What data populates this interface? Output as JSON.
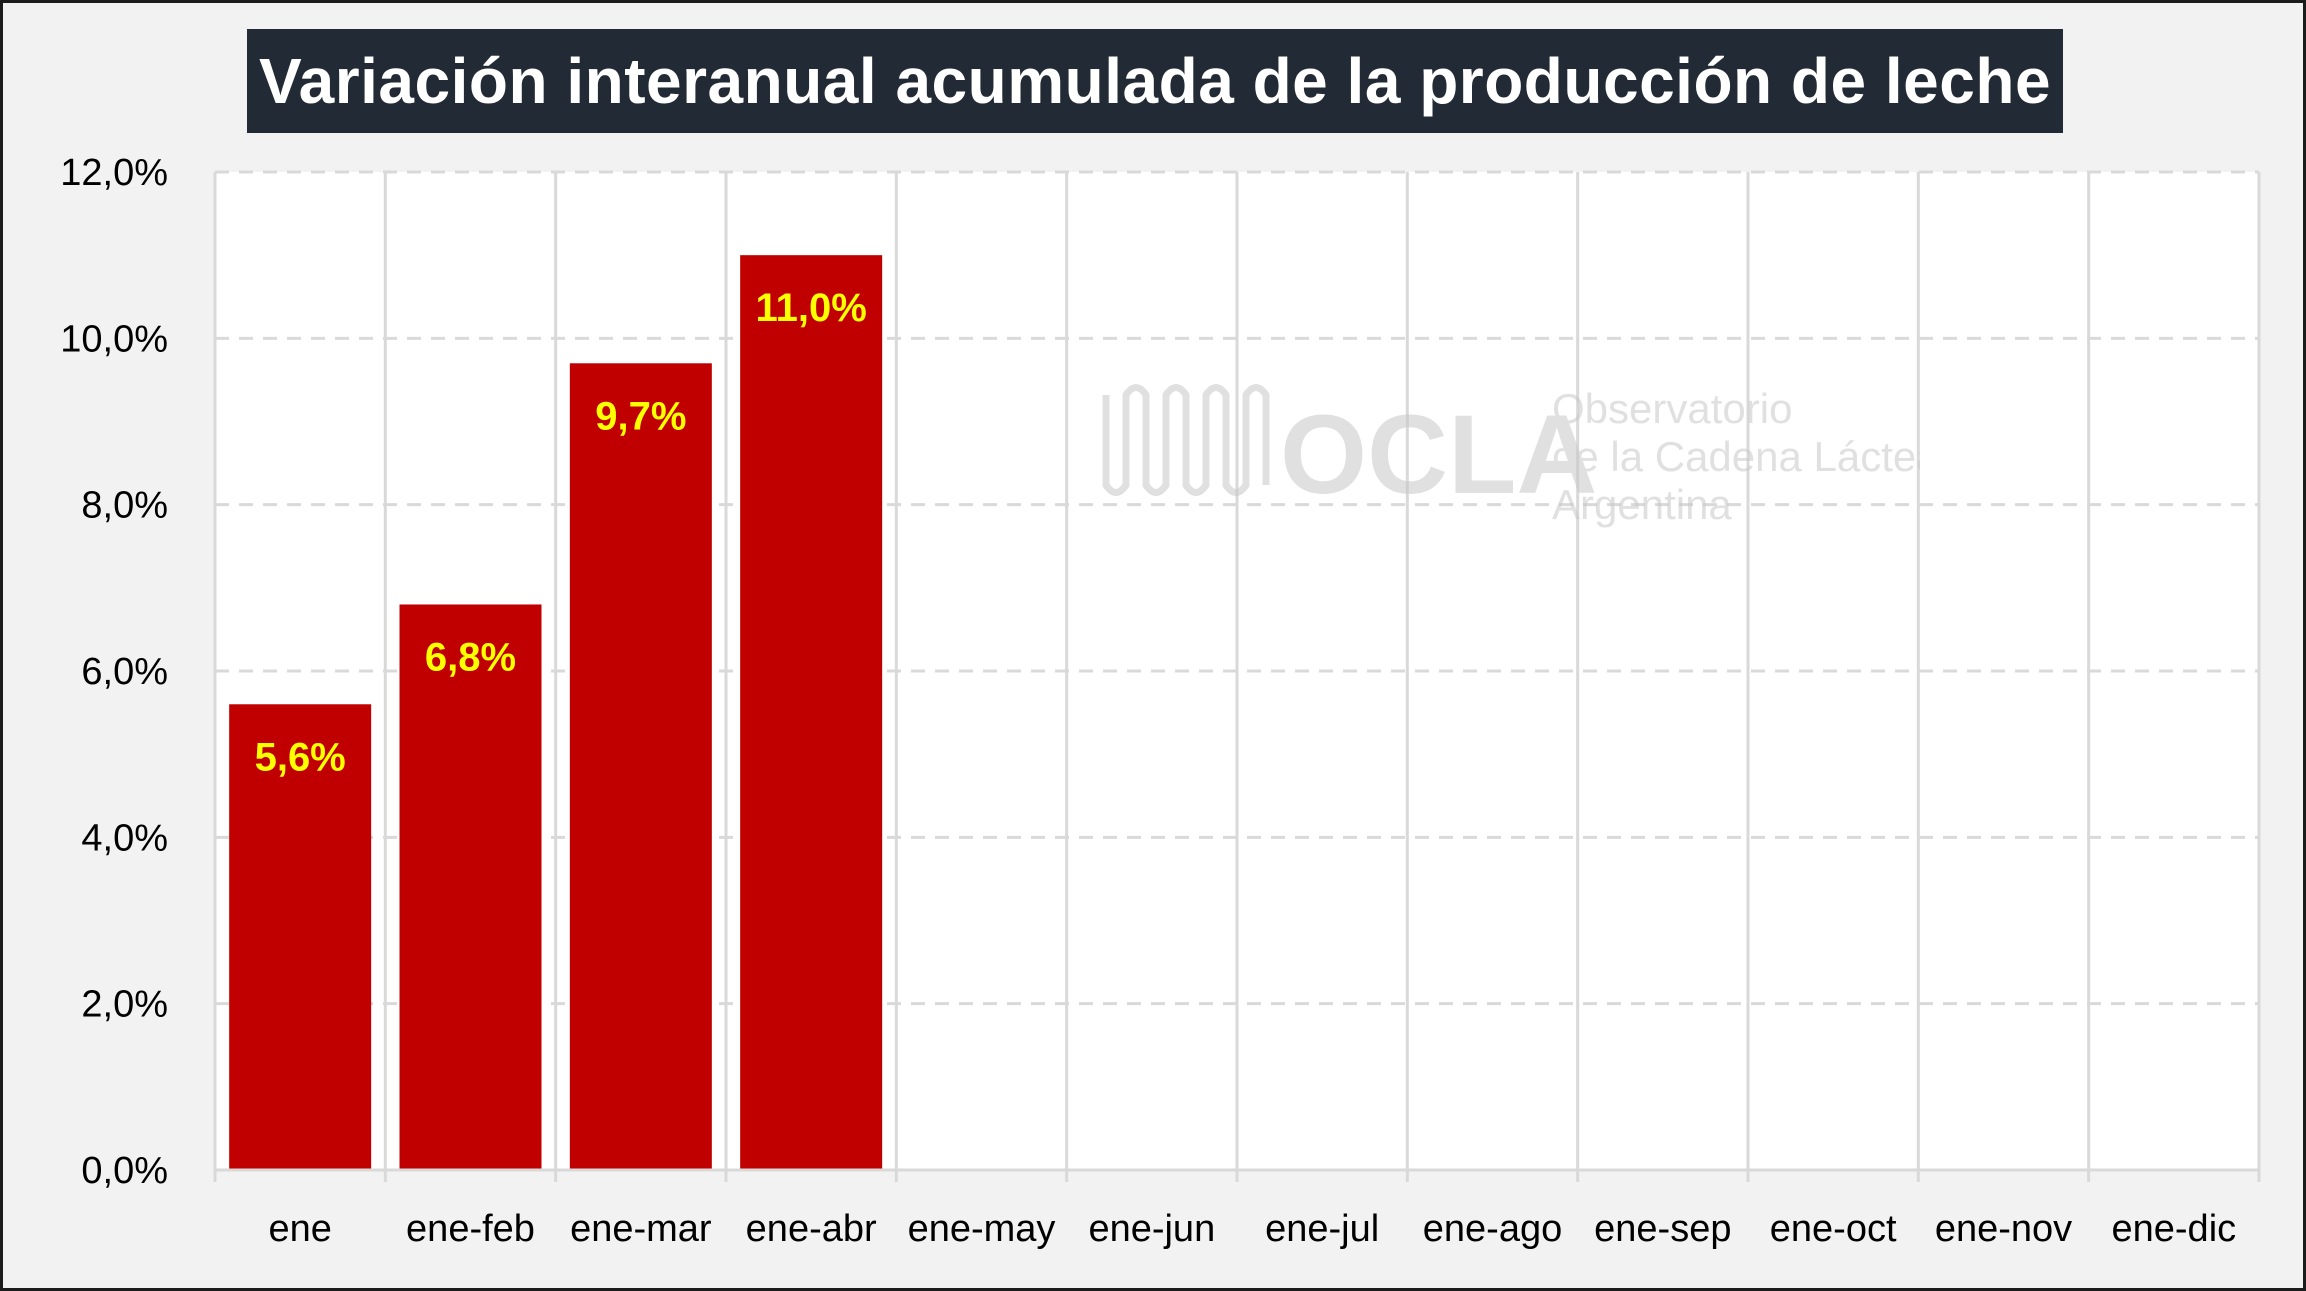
{
  "chart_data": {
    "type": "bar",
    "title": "Variación interanual acumulada de la producción de leche",
    "categories": [
      "ene",
      "ene-feb",
      "ene-mar",
      "ene-abr",
      "ene-may",
      "ene-jun",
      "ene-jul",
      "ene-ago",
      "ene-sep",
      "ene-oct",
      "ene-nov",
      "ene-dic"
    ],
    "values": [
      5.6,
      6.8,
      9.7,
      11.0,
      null,
      null,
      null,
      null,
      null,
      null,
      null,
      null
    ],
    "data_labels": [
      "5,6%",
      "6,8%",
      "9,7%",
      "11,0%",
      null,
      null,
      null,
      null,
      null,
      null,
      null,
      null
    ],
    "yticks": [
      "0,0%",
      "2,0%",
      "4,0%",
      "6,0%",
      "8,0%",
      "10,0%",
      "12,0%"
    ],
    "ylim": [
      0,
      12
    ],
    "xlabel": "",
    "ylabel": "",
    "grid": "horizontal dashed, vertical solid",
    "legend": "none",
    "colors": {
      "bar": "#c00000",
      "data_label": "#ffff00",
      "title_bg": "#222b35",
      "title_text": "#ffffff"
    }
  },
  "watermark": {
    "logo": "OCLA",
    "line1": "Observatorio",
    "line2": "de la Cadena Láctea",
    "line3": "Argentina"
  }
}
